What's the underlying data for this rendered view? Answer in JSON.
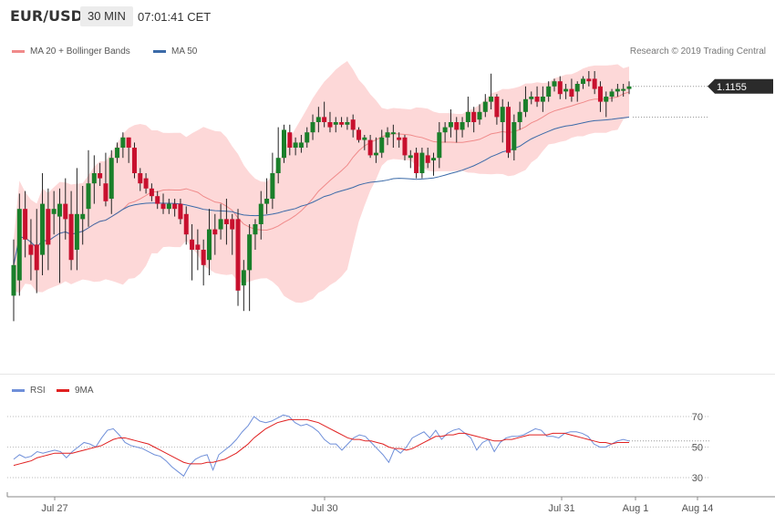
{
  "header": {
    "symbol": "EUR/USD",
    "timeframe": "30 MIN",
    "time": "07:01:41 CET"
  },
  "legend": {
    "bb_label": "MA 20 + Bollinger Bands",
    "ma50_label": "MA 50",
    "credit": "Research © 2019 Trading Central"
  },
  "rsi_legend": {
    "rsi_label": "RSI",
    "ma_label": "9MA"
  },
  "colors": {
    "up": "#1a7f2a",
    "down": "#c8102e",
    "band_fill": "#fdd8d8",
    "band_line": "#f08a8a",
    "ma50": "#3b6aa8",
    "rsi": "#6f8fd9",
    "rsi_ma": "#e02020",
    "price_tag": "#2b2b2b"
  },
  "chart_data": [
    {
      "type": "candlestick",
      "title": "EUR/USD",
      "timeframe": "30 MIN",
      "last_price_label": "1.1155",
      "x_tick_labels": [
        "Jul 27",
        "Jul 30",
        "Jul 31",
        "Aug 1",
        "Aug 14"
      ],
      "series": [
        {
          "name": "MA 20 + Bollinger Bands"
        },
        {
          "name": "MA 50"
        }
      ],
      "candles_relative": [
        {
          "o": 0.52,
          "c": 0.64,
          "h": 0.74,
          "l": 0.42
        },
        {
          "o": 0.58,
          "c": 0.86,
          "h": 0.92,
          "l": 0.52
        },
        {
          "o": 0.86,
          "c": 0.74,
          "h": 0.93,
          "l": 0.67
        },
        {
          "o": 0.72,
          "c": 0.68,
          "h": 0.82,
          "l": 0.58
        },
        {
          "o": 0.72,
          "c": 0.62,
          "h": 0.86,
          "l": 0.53
        },
        {
          "o": 0.68,
          "c": 0.88,
          "h": 1.0,
          "l": 0.6
        },
        {
          "o": 0.86,
          "c": 0.72,
          "h": 0.94,
          "l": 0.62
        },
        {
          "o": 0.84,
          "c": 0.86,
          "h": 0.93,
          "l": 0.76
        },
        {
          "o": 0.83,
          "c": 0.88,
          "h": 0.94,
          "l": 0.57
        },
        {
          "o": 0.88,
          "c": 0.82,
          "h": 0.98,
          "l": 0.74
        },
        {
          "o": 0.84,
          "c": 0.66,
          "h": 0.93,
          "l": 0.62
        },
        {
          "o": 0.7,
          "c": 0.84,
          "h": 1.02,
          "l": 0.62
        },
        {
          "o": 0.82,
          "c": 0.84,
          "h": 0.95,
          "l": 0.72
        },
        {
          "o": 0.86,
          "c": 0.96,
          "h": 1.09,
          "l": 0.79
        },
        {
          "o": 0.96,
          "c": 1.0,
          "h": 1.07,
          "l": 0.88
        },
        {
          "o": 1.0,
          "c": 0.98,
          "h": 1.04,
          "l": 0.95
        },
        {
          "o": 0.96,
          "c": 0.89,
          "h": 1.08,
          "l": 0.87
        },
        {
          "o": 0.9,
          "c": 1.06,
          "h": 1.09,
          "l": 0.84
        },
        {
          "o": 1.06,
          "c": 1.1,
          "h": 1.12,
          "l": 1.04
        },
        {
          "o": 1.1,
          "c": 1.14,
          "h": 1.16,
          "l": 1.06
        },
        {
          "o": 1.14,
          "c": 1.1,
          "h": 1.14,
          "l": 1.04
        },
        {
          "o": 1.1,
          "c": 1.0,
          "h": 1.12,
          "l": 0.98
        },
        {
          "o": 1.0,
          "c": 0.96,
          "h": 1.02,
          "l": 0.93
        },
        {
          "o": 0.98,
          "c": 0.94,
          "h": 1.0,
          "l": 0.92
        },
        {
          "o": 0.94,
          "c": 0.91,
          "h": 0.96,
          "l": 0.89
        },
        {
          "o": 0.91,
          "c": 0.88,
          "h": 0.93,
          "l": 0.86
        },
        {
          "o": 0.88,
          "c": 0.86,
          "h": 0.92,
          "l": 0.84
        },
        {
          "o": 0.86,
          "c": 0.88,
          "h": 0.9,
          "l": 0.84
        },
        {
          "o": 0.88,
          "c": 0.86,
          "h": 0.9,
          "l": 0.83
        },
        {
          "o": 0.88,
          "c": 0.82,
          "h": 0.9,
          "l": 0.8
        },
        {
          "o": 0.84,
          "c": 0.76,
          "h": 0.87,
          "l": 0.72
        },
        {
          "o": 0.74,
          "c": 0.7,
          "h": 0.8,
          "l": 0.58
        },
        {
          "o": 0.72,
          "c": 0.7,
          "h": 0.78,
          "l": 0.62
        },
        {
          "o": 0.7,
          "c": 0.64,
          "h": 0.74,
          "l": 0.56
        },
        {
          "o": 0.66,
          "c": 0.78,
          "h": 0.86,
          "l": 0.6
        },
        {
          "o": 0.78,
          "c": 0.76,
          "h": 0.84,
          "l": 0.68
        },
        {
          "o": 0.78,
          "c": 0.82,
          "h": 0.88,
          "l": 0.74
        },
        {
          "o": 0.82,
          "c": 0.8,
          "h": 0.9,
          "l": 0.72
        },
        {
          "o": 0.82,
          "c": 0.78,
          "h": 0.84,
          "l": 0.68
        },
        {
          "o": 0.82,
          "c": 0.54,
          "h": 0.86,
          "l": 0.48
        },
        {
          "o": 0.56,
          "c": 0.62,
          "h": 0.66,
          "l": 0.46
        },
        {
          "o": 0.62,
          "c": 0.76,
          "h": 0.8,
          "l": 0.46
        },
        {
          "o": 0.76,
          "c": 0.8,
          "h": 0.82,
          "l": 0.7
        },
        {
          "o": 0.8,
          "c": 0.88,
          "h": 0.93,
          "l": 0.74
        },
        {
          "o": 0.88,
          "c": 0.9,
          "h": 0.98,
          "l": 0.84
        },
        {
          "o": 0.9,
          "c": 1.0,
          "h": 1.08,
          "l": 0.86
        },
        {
          "o": 1.0,
          "c": 1.06,
          "h": 1.18,
          "l": 0.96
        },
        {
          "o": 1.06,
          "c": 1.17,
          "h": 1.19,
          "l": 1.04
        },
        {
          "o": 1.16,
          "c": 1.1,
          "h": 1.19,
          "l": 1.07
        },
        {
          "o": 1.1,
          "c": 1.12,
          "h": 1.14,
          "l": 1.07
        },
        {
          "o": 1.1,
          "c": 1.12,
          "h": 1.15,
          "l": 1.08
        },
        {
          "o": 1.12,
          "c": 1.16,
          "h": 1.18,
          "l": 1.1
        },
        {
          "o": 1.16,
          "c": 1.2,
          "h": 1.23,
          "l": 1.13
        },
        {
          "o": 1.2,
          "c": 1.22,
          "h": 1.26,
          "l": 1.16
        },
        {
          "o": 1.22,
          "c": 1.2,
          "h": 1.28,
          "l": 1.18
        },
        {
          "o": 1.2,
          "c": 1.18,
          "h": 1.24,
          "l": 1.16
        },
        {
          "o": 1.19,
          "c": 1.2,
          "h": 1.22,
          "l": 1.16
        },
        {
          "o": 1.2,
          "c": 1.19,
          "h": 1.22,
          "l": 1.18
        },
        {
          "o": 1.19,
          "c": 1.2,
          "h": 1.22,
          "l": 1.17
        },
        {
          "o": 1.21,
          "c": 1.17,
          "h": 1.23,
          "l": 1.14
        },
        {
          "o": 1.17,
          "c": 1.13,
          "h": 1.18,
          "l": 1.12
        },
        {
          "o": 1.13,
          "c": 1.14,
          "h": 1.15,
          "l": 1.09
        },
        {
          "o": 1.13,
          "c": 1.07,
          "h": 1.15,
          "l": 1.06
        },
        {
          "o": 1.07,
          "c": 1.08,
          "h": 1.14,
          "l": 1.04
        },
        {
          "o": 1.08,
          "c": 1.14,
          "h": 1.17,
          "l": 1.06
        },
        {
          "o": 1.14,
          "c": 1.16,
          "h": 1.18,
          "l": 1.11
        },
        {
          "o": 1.16,
          "c": 1.16,
          "h": 1.19,
          "l": 1.1
        },
        {
          "o": 1.14,
          "c": 1.13,
          "h": 1.16,
          "l": 1.1
        },
        {
          "o": 1.14,
          "c": 1.07,
          "h": 1.15,
          "l": 1.05
        },
        {
          "o": 1.06,
          "c": 1.07,
          "h": 1.09,
          "l": 1.02
        },
        {
          "o": 1.08,
          "c": 1.0,
          "h": 1.1,
          "l": 0.98
        },
        {
          "o": 1.0,
          "c": 1.08,
          "h": 1.1,
          "l": 0.98
        },
        {
          "o": 1.07,
          "c": 1.04,
          "h": 1.1,
          "l": 1.02
        },
        {
          "o": 1.05,
          "c": 1.06,
          "h": 1.08,
          "l": 0.99
        },
        {
          "o": 1.06,
          "c": 1.16,
          "h": 1.2,
          "l": 1.02
        },
        {
          "o": 1.16,
          "c": 1.18,
          "h": 1.2,
          "l": 1.12
        },
        {
          "o": 1.18,
          "c": 1.2,
          "h": 1.25,
          "l": 1.14
        },
        {
          "o": 1.2,
          "c": 1.17,
          "h": 1.22,
          "l": 1.12
        },
        {
          "o": 1.17,
          "c": 1.2,
          "h": 1.22,
          "l": 1.14
        },
        {
          "o": 1.2,
          "c": 1.24,
          "h": 1.3,
          "l": 1.18
        },
        {
          "o": 1.24,
          "c": 1.2,
          "h": 1.26,
          "l": 1.16
        },
        {
          "o": 1.21,
          "c": 1.24,
          "h": 1.27,
          "l": 1.19
        },
        {
          "o": 1.24,
          "c": 1.28,
          "h": 1.31,
          "l": 1.22
        },
        {
          "o": 1.28,
          "c": 1.3,
          "h": 1.39,
          "l": 1.25
        },
        {
          "o": 1.3,
          "c": 1.22,
          "h": 1.31,
          "l": 1.19
        },
        {
          "o": 1.2,
          "c": 1.26,
          "h": 1.29,
          "l": 1.12
        },
        {
          "o": 1.26,
          "c": 1.08,
          "h": 1.28,
          "l": 1.06
        },
        {
          "o": 1.09,
          "c": 1.2,
          "h": 1.23,
          "l": 1.05
        },
        {
          "o": 1.2,
          "c": 1.24,
          "h": 1.28,
          "l": 1.17
        },
        {
          "o": 1.24,
          "c": 1.29,
          "h": 1.34,
          "l": 1.22
        },
        {
          "o": 1.29,
          "c": 1.3,
          "h": 1.32,
          "l": 1.27
        },
        {
          "o": 1.3,
          "c": 1.28,
          "h": 1.34,
          "l": 1.26
        },
        {
          "o": 1.28,
          "c": 1.3,
          "h": 1.34,
          "l": 1.24
        },
        {
          "o": 1.3,
          "c": 1.34,
          "h": 1.36,
          "l": 1.28
        },
        {
          "o": 1.34,
          "c": 1.36,
          "h": 1.37,
          "l": 1.32
        },
        {
          "o": 1.36,
          "c": 1.31,
          "h": 1.38,
          "l": 1.29
        },
        {
          "o": 1.32,
          "c": 1.33,
          "h": 1.35,
          "l": 1.29
        },
        {
          "o": 1.33,
          "c": 1.3,
          "h": 1.37,
          "l": 1.28
        },
        {
          "o": 1.32,
          "c": 1.35,
          "h": 1.36,
          "l": 1.28
        },
        {
          "o": 1.35,
          "c": 1.37,
          "h": 1.38,
          "l": 1.33
        },
        {
          "o": 1.37,
          "c": 1.36,
          "h": 1.4,
          "l": 1.34
        },
        {
          "o": 1.37,
          "c": 1.33,
          "h": 1.4,
          "l": 1.31
        },
        {
          "o": 1.34,
          "c": 1.28,
          "h": 1.36,
          "l": 1.24
        },
        {
          "o": 1.28,
          "c": 1.3,
          "h": 1.32,
          "l": 1.22
        },
        {
          "o": 1.3,
          "c": 1.32,
          "h": 1.33,
          "l": 1.28
        },
        {
          "o": 1.32,
          "c": 1.33,
          "h": 1.35,
          "l": 1.3
        },
        {
          "o": 1.33,
          "c": 1.33,
          "h": 1.35,
          "l": 1.3
        },
        {
          "o": 1.33,
          "c": 1.34,
          "h": 1.36,
          "l": 1.31
        }
      ]
    },
    {
      "type": "line",
      "title": "RSI",
      "ylim": [
        20,
        80
      ],
      "y_ticks": [
        30,
        50,
        70
      ],
      "last_rsi_value": 54,
      "series": [
        {
          "name": "RSI",
          "values": [
            42,
            45,
            43,
            44,
            47,
            46,
            47,
            48,
            47,
            43,
            47,
            50,
            53,
            52,
            50,
            56,
            61,
            62,
            58,
            53,
            51,
            50,
            49,
            47,
            45,
            44,
            41,
            37,
            34,
            31,
            38,
            42,
            44,
            45,
            35,
            45,
            48,
            51,
            55,
            60,
            64,
            70,
            67,
            66,
            67,
            69,
            71,
            70,
            66,
            64,
            65,
            63,
            60,
            55,
            52,
            52,
            48,
            52,
            56,
            58,
            57,
            53,
            49,
            45,
            40,
            49,
            46,
            50,
            56,
            58,
            60,
            56,
            61,
            55,
            59,
            61,
            62,
            59,
            56,
            48,
            53,
            55,
            47,
            53,
            56,
            57,
            57,
            58,
            60,
            62,
            61,
            57,
            57,
            56,
            59,
            60,
            60,
            59,
            57,
            52,
            50,
            50,
            52,
            54,
            55,
            54
          ]
        },
        {
          "name": "9MA",
          "values": [
            38,
            39,
            40,
            41,
            43,
            44,
            45,
            46,
            46,
            46,
            46,
            47,
            48,
            49,
            50,
            51,
            53,
            55,
            56,
            56,
            55,
            54,
            53,
            52,
            50,
            48,
            46,
            44,
            42,
            40,
            39,
            39,
            39,
            40,
            40,
            41,
            42,
            44,
            46,
            49,
            52,
            56,
            59,
            62,
            64,
            66,
            67,
            68,
            68,
            68,
            68,
            67,
            66,
            64,
            62,
            60,
            58,
            56,
            55,
            55,
            54,
            54,
            53,
            52,
            50,
            49,
            49,
            48,
            49,
            51,
            53,
            55,
            57,
            57,
            58,
            58,
            59,
            59,
            58,
            57,
            56,
            55,
            54,
            54,
            55,
            55,
            56,
            57,
            58,
            58,
            58,
            58,
            59,
            59,
            59,
            58,
            57,
            56,
            55,
            54,
            53,
            53,
            52,
            53,
            53,
            53
          ]
        }
      ]
    }
  ]
}
